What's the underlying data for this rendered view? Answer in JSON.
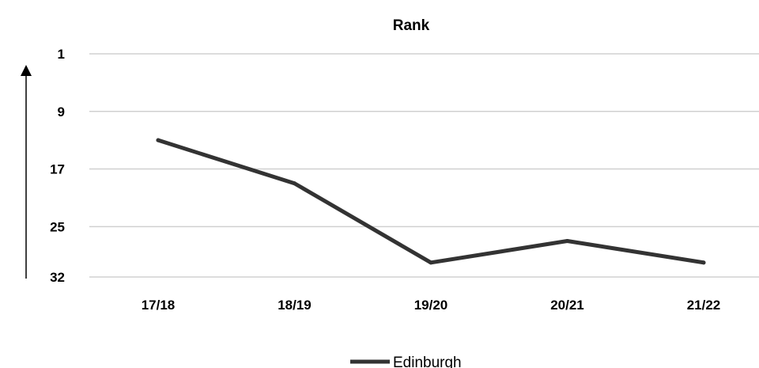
{
  "chart_data": {
    "type": "line",
    "title": "Rank",
    "categories": [
      "17/18",
      "18/19",
      "19/20",
      "20/21",
      "21/22"
    ],
    "y_ticks": [
      1,
      9,
      17,
      25,
      32
    ],
    "ylim": [
      1,
      32
    ],
    "y_inverted": true,
    "y_axis_arrow": "up",
    "grid": true,
    "legend_position": "bottom",
    "series": [
      {
        "name": "Edinburgh",
        "values": [
          13,
          19,
          30,
          27,
          30
        ],
        "color": "#333333"
      }
    ]
  }
}
